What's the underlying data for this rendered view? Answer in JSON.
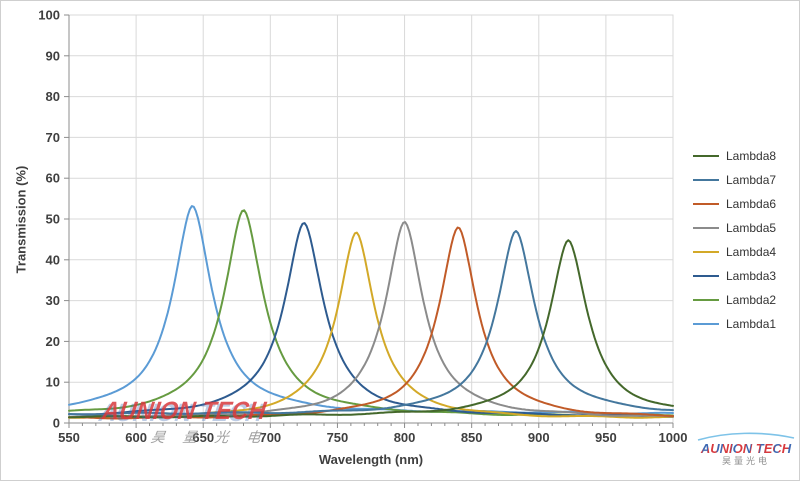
{
  "chart_data": {
    "type": "line",
    "title": "",
    "xlabel": "Wavelength (nm)",
    "ylabel": "Transmission  (%)",
    "xlim": [
      550,
      1000
    ],
    "ylim": [
      0,
      100
    ],
    "x_ticks": [
      550,
      600,
      650,
      700,
      750,
      800,
      850,
      900,
      950,
      1000
    ],
    "x_minor_step": 10,
    "y_ticks": [
      0,
      10,
      20,
      30,
      40,
      50,
      60,
      70,
      80,
      90,
      100
    ],
    "grid": true,
    "legend_position": "right",
    "curve_model": "T(w) = baseline + (peak_T - baseline) / (1 + (2|w - peak_nm| / fwhm_nm)^1.85)",
    "series": [
      {
        "name": "Lambda1",
        "color": "#5B9BD5",
        "peak_nm": 642,
        "peak_transmission_pct": 53.0,
        "fwhm_nm": 36,
        "baseline_pct": 2.2
      },
      {
        "name": "Lambda2",
        "color": "#669B41",
        "peak_nm": 680,
        "peak_transmission_pct": 52.2,
        "fwhm_nm": 36,
        "baseline_pct": 1.6
      },
      {
        "name": "Lambda3",
        "color": "#2E5B8F",
        "peak_nm": 725,
        "peak_transmission_pct": 49.2,
        "fwhm_nm": 36,
        "baseline_pct": 1.4
      },
      {
        "name": "Lambda4",
        "color": "#D3A928",
        "peak_nm": 764,
        "peak_transmission_pct": 46.8,
        "fwhm_nm": 34,
        "baseline_pct": 1.0
      },
      {
        "name": "Lambda5",
        "color": "#8B8B8B",
        "peak_nm": 800,
        "peak_transmission_pct": 49.4,
        "fwhm_nm": 35,
        "baseline_pct": 1.1
      },
      {
        "name": "Lambda6",
        "color": "#C15B28",
        "peak_nm": 840,
        "peak_transmission_pct": 47.9,
        "fwhm_nm": 35,
        "baseline_pct": 1.0
      },
      {
        "name": "Lambda7",
        "color": "#44779D",
        "peak_nm": 883,
        "peak_transmission_pct": 46.8,
        "fwhm_nm": 35,
        "baseline_pct": 2.0
      },
      {
        "name": "Lambda8",
        "color": "#44682B",
        "peak_nm": 922,
        "peak_transmission_pct": 44.8,
        "fwhm_nm": 35,
        "baseline_pct": 1.4
      }
    ],
    "legend_order": [
      "Lambda8",
      "Lambda7",
      "Lambda6",
      "Lambda5",
      "Lambda4",
      "Lambda3",
      "Lambda2",
      "Lambda1"
    ]
  },
  "watermarks": {
    "center": {
      "line1": "AUNION TECH",
      "line2": "昊 量 光 电"
    },
    "logo": {
      "text": "AUNION TECH",
      "subtext": "昊量光电"
    }
  },
  "brand": {
    "red": "#D8393D",
    "blue": "#3E68B2",
    "swoosh": "#7EC3E8",
    "gray": "#8F8F8F"
  }
}
